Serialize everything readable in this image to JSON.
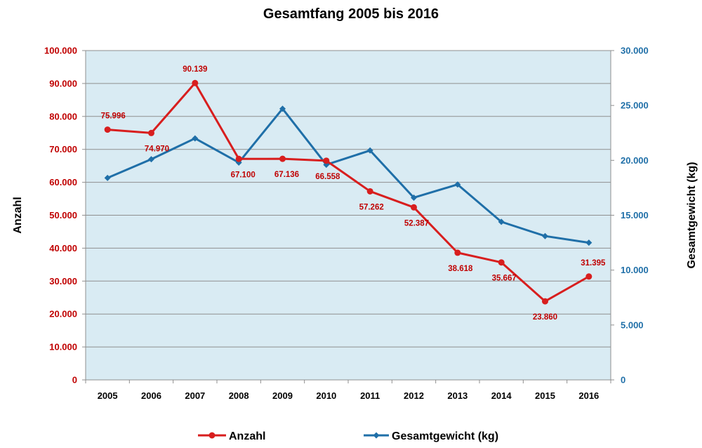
{
  "chart_data": {
    "type": "line",
    "title": "Gesamtfang 2005 bis 2016",
    "categories": [
      "2005",
      "2006",
      "2007",
      "2008",
      "2009",
      "2010",
      "2011",
      "2012",
      "2013",
      "2014",
      "2015",
      "2016"
    ],
    "y_left": {
      "label": "Anzahl",
      "range": [
        0,
        100000
      ],
      "ticks": [
        "0",
        "10.000",
        "20.000",
        "30.000",
        "40.000",
        "50.000",
        "60.000",
        "70.000",
        "80.000",
        "90.000",
        "100.000"
      ]
    },
    "y_right": {
      "label": "Gesamtgewicht (kg)",
      "range": [
        0,
        30000
      ],
      "ticks": [
        "0",
        "5.000",
        "10.000",
        "15.000",
        "20.000",
        "25.000",
        "30.000"
      ]
    },
    "series": [
      {
        "name": "Anzahl",
        "axis": "left",
        "color": "#d81e1e",
        "marker": "circle",
        "values": [
          75996,
          74970,
          90139,
          67100,
          67136,
          66558,
          57262,
          52387,
          38618,
          35667,
          23860,
          31395
        ],
        "data_labels": [
          "75.996",
          "74.970",
          "90.139",
          "67.100",
          "67.136",
          "66.558",
          "57.262",
          "52.387",
          "38.618",
          "35.667",
          "23.860",
          "31.395"
        ]
      },
      {
        "name": "Gesamtgewicht (kg)",
        "axis": "right",
        "color": "#1f6fa8",
        "marker": "diamond",
        "values": [
          18400,
          20100,
          22000,
          19800,
          24700,
          19600,
          20900,
          16600,
          17800,
          14400,
          13100,
          12500
        ]
      }
    ],
    "grid": true,
    "legend": "bottom",
    "plot_background": "#d9ebf3"
  }
}
